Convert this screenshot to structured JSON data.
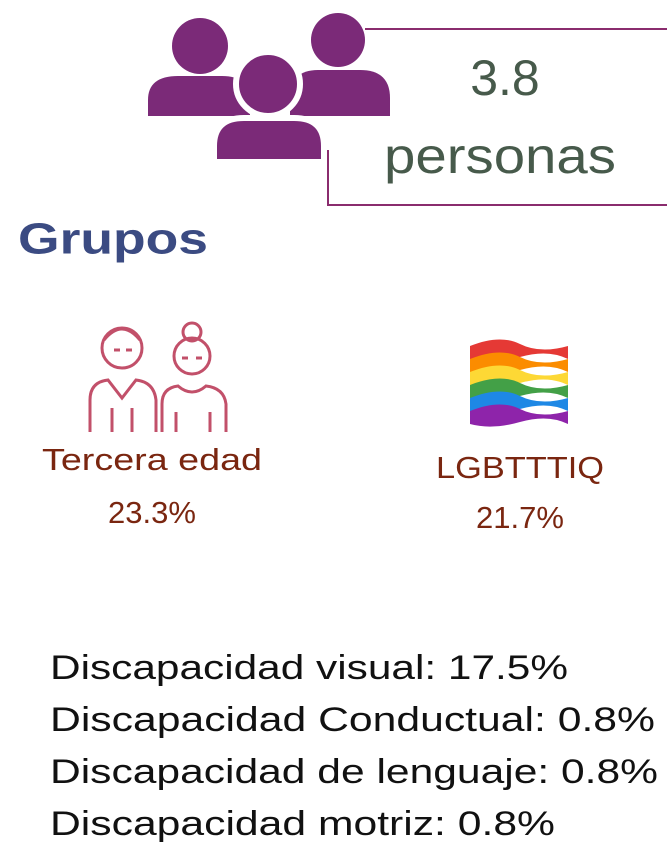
{
  "household": {
    "value": "3.8",
    "unit": "personas"
  },
  "groups_title": "Grupos",
  "groups": [
    {
      "label": "Tercera edad",
      "value": "23.3%"
    },
    {
      "label": "LGBTTTIQ",
      "value": "21.7%"
    }
  ],
  "disabilities": [
    "Discapacidad visual: 17.5%",
    "Discapacidad Conductual: 0.8%",
    "Discapacidad de lenguaje: 0.8%",
    "Discapacidad motriz: 0.8%"
  ]
}
